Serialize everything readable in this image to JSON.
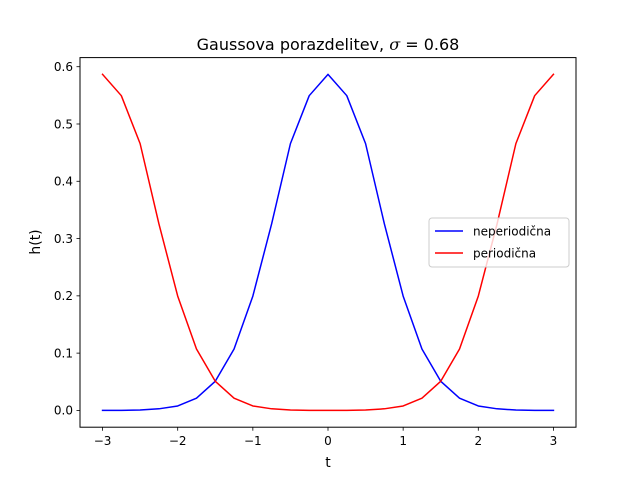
{
  "chart_data": {
    "type": "line",
    "title": "Gaussova porazdelitev, ",
    "title_symbol": "σ",
    "title_value": " = 0.68",
    "xlabel": "t",
    "ylabel": "h(t)",
    "xlim": [
      -3.3,
      3.3
    ],
    "ylim": [
      -0.0293,
      0.6159
    ],
    "grid": false,
    "legend_position": "center-right",
    "xticks": [
      -3,
      -2,
      -1,
      0,
      1,
      2,
      3
    ],
    "xtick_labels": [
      "−3",
      "−2",
      "−1",
      "0",
      "1",
      "2",
      "3"
    ],
    "yticks": [
      0.0,
      0.1,
      0.2,
      0.3,
      0.4,
      0.5,
      0.6
    ],
    "ytick_labels": [
      "0.0",
      "0.1",
      "0.2",
      "0.3",
      "0.4",
      "0.5",
      "0.6"
    ],
    "series": [
      {
        "name": "neperiodična",
        "color": "#0000ff",
        "x": [
          -3.0,
          -2.75,
          -2.5,
          -2.25,
          -2.0,
          -1.75,
          -1.5,
          -1.25,
          -1.0,
          -0.75,
          -0.5,
          -0.25,
          0.0,
          0.25,
          0.5,
          0.75,
          1.0,
          1.25,
          1.5,
          1.75,
          2.0,
          2.25,
          2.5,
          2.75,
          3.0
        ],
        "y": [
          0.0,
          0.0001,
          0.0007,
          0.0028,
          0.0078,
          0.0213,
          0.0509,
          0.1073,
          0.1996,
          0.3257,
          0.4657,
          0.5494,
          0.5867,
          0.5494,
          0.4657,
          0.3257,
          0.1996,
          0.1073,
          0.0509,
          0.0213,
          0.0078,
          0.0028,
          0.0007,
          0.0001,
          0.0
        ]
      },
      {
        "name": "periodična",
        "color": "#ff0000",
        "x": [
          -3.0,
          -2.75,
          -2.5,
          -2.25,
          -2.0,
          -1.75,
          -1.5,
          -1.25,
          -1.0,
          -0.75,
          -0.5,
          -0.25,
          0.0,
          0.25,
          0.5,
          0.75,
          1.0,
          1.25,
          1.5,
          1.75,
          2.0,
          2.25,
          2.5,
          2.75,
          3.0
        ],
        "y": [
          0.5867,
          0.5494,
          0.4657,
          0.3257,
          0.1996,
          0.1073,
          0.0509,
          0.0213,
          0.0078,
          0.0028,
          0.0007,
          0.0001,
          0.0,
          0.0001,
          0.0007,
          0.0028,
          0.0078,
          0.0213,
          0.0509,
          0.1073,
          0.1996,
          0.3257,
          0.4657,
          0.5494,
          0.5867
        ]
      }
    ]
  }
}
